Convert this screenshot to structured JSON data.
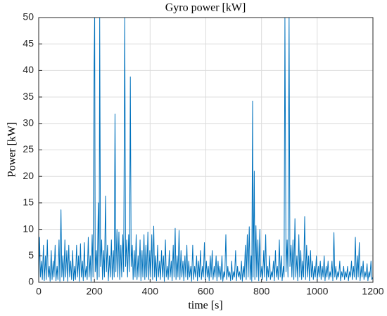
{
  "chart_data": {
    "type": "line",
    "title": "Gyro power [kW]",
    "xlabel": "time [s]",
    "ylabel": "Power [kW]",
    "xlim": [
      0,
      1200
    ],
    "ylim": [
      0,
      50
    ],
    "xticks": [
      0,
      200,
      400,
      600,
      800,
      1000,
      1200
    ],
    "yticks": [
      0,
      5,
      10,
      15,
      20,
      25,
      30,
      35,
      40,
      45,
      50
    ],
    "grid": true,
    "x": [
      0,
      3,
      6,
      10,
      13,
      17,
      20,
      24,
      27,
      31,
      34,
      38,
      41,
      45,
      48,
      52,
      55,
      59,
      62,
      66,
      69,
      73,
      76,
      80,
      83,
      87,
      90,
      94,
      97,
      101,
      104,
      108,
      111,
      115,
      118,
      122,
      125,
      129,
      132,
      136,
      139,
      143,
      146,
      150,
      153,
      157,
      160,
      164,
      167,
      171,
      174,
      178,
      181,
      185,
      188,
      192,
      195,
      199,
      201,
      203,
      207,
      210,
      214,
      217,
      219,
      222,
      226,
      229,
      233,
      236,
      240,
      243,
      247,
      250,
      254,
      257,
      261,
      264,
      268,
      271,
      274,
      277,
      281,
      284,
      288,
      291,
      295,
      298,
      302,
      305,
      309,
      312,
      316,
      319,
      323,
      326,
      329,
      332,
      336,
      339,
      343,
      346,
      350,
      353,
      357,
      360,
      364,
      367,
      371,
      374,
      378,
      381,
      385,
      388,
      392,
      395,
      399,
      402,
      406,
      409,
      413,
      416,
      420,
      423,
      427,
      430,
      434,
      437,
      441,
      444,
      448,
      451,
      455,
      458,
      462,
      465,
      469,
      472,
      476,
      479,
      483,
      486,
      490,
      493,
      497,
      500,
      504,
      507,
      511,
      514,
      518,
      521,
      525,
      528,
      532,
      535,
      539,
      542,
      546,
      549,
      553,
      556,
      560,
      563,
      567,
      570,
      574,
      577,
      581,
      584,
      588,
      591,
      595,
      598,
      602,
      605,
      609,
      612,
      616,
      619,
      623,
      626,
      630,
      633,
      637,
      640,
      644,
      647,
      651,
      654,
      658,
      661,
      665,
      668,
      672,
      675,
      679,
      682,
      686,
      689,
      693,
      696,
      700,
      703,
      707,
      710,
      714,
      717,
      721,
      724,
      728,
      731,
      735,
      738,
      742,
      745,
      749,
      752,
      756,
      759,
      763,
      765,
      768,
      770,
      774,
      776,
      780,
      783,
      787,
      790,
      794,
      797,
      801,
      804,
      808,
      811,
      815,
      818,
      822,
      825,
      829,
      832,
      836,
      839,
      843,
      846,
      850,
      853,
      857,
      860,
      864,
      867,
      871,
      874,
      878,
      881,
      884,
      888,
      892,
      895,
      899,
      902,
      906,
      909,
      913,
      916,
      920,
      923,
      927,
      930,
      934,
      937,
      941,
      944,
      948,
      951,
      955,
      958,
      962,
      965,
      969,
      972,
      976,
      979,
      983,
      986,
      990,
      993,
      997,
      1000,
      1004,
      1007,
      1011,
      1014,
      1018,
      1021,
      1025,
      1028,
      1032,
      1035,
      1039,
      1042,
      1046,
      1049,
      1053,
      1056,
      1060,
      1063,
      1067,
      1070,
      1074,
      1077,
      1081,
      1084,
      1088,
      1091,
      1095,
      1098,
      1102,
      1105,
      1109,
      1112,
      1116,
      1119,
      1123,
      1126,
      1130,
      1133,
      1137,
      1140,
      1144,
      1147,
      1151,
      1154,
      1158,
      1161,
      1165,
      1168,
      1172,
      1175,
      1179,
      1182,
      1186,
      1189,
      1193,
      1196,
      1200
    ],
    "series": [
      {
        "name": "Gyro power",
        "color": "#0072bd",
        "values": [
          0,
          8.5,
          1,
          4,
          0.5,
          7,
          0.3,
          5,
          0.5,
          8,
          1,
          3,
          0.2,
          6,
          0.5,
          4,
          1,
          7,
          0.3,
          3,
          0.5,
          8,
          0.2,
          13.7,
          1,
          5,
          0.3,
          8,
          1,
          6,
          0.2,
          7,
          1,
          4,
          0.5,
          6,
          0.3,
          3,
          0.5,
          7,
          1,
          5,
          0.2,
          7.3,
          1,
          4,
          0.3,
          7.5,
          1,
          3,
          0.5,
          8.5,
          1,
          5,
          0.2,
          9,
          1,
          41.5,
          50,
          2,
          6,
          0.5,
          15,
          1,
          50,
          3,
          8,
          0.5,
          6,
          1,
          16.3,
          2,
          7,
          0.3,
          5,
          1,
          8,
          0.5,
          6,
          1,
          31.8,
          2,
          10,
          1,
          9.5,
          0.5,
          7,
          1,
          9,
          2,
          50,
          3,
          8,
          1,
          9,
          2,
          38.8,
          3,
          7,
          0.5,
          6,
          1,
          9,
          0.5,
          5,
          1,
          8,
          0.3,
          6,
          1,
          9,
          0.5,
          7,
          1,
          9.5,
          0.5,
          6,
          1,
          9,
          0.5,
          10.6,
          1,
          5,
          0.3,
          7,
          1,
          4,
          0.5,
          6,
          1,
          5,
          0.2,
          8,
          1,
          3,
          0.5,
          6,
          1,
          4,
          0.3,
          7,
          1,
          10.2,
          0.5,
          5,
          1,
          9.8,
          0.5,
          6,
          1,
          4,
          0.3,
          5,
          1,
          7,
          0.5,
          4,
          1,
          3,
          0.2,
          7,
          0.5,
          3,
          1,
          5,
          0.3,
          4,
          1,
          6,
          0.5,
          3,
          1,
          7.5,
          0.5,
          4,
          1,
          3,
          0.3,
          5,
          1,
          6,
          0.5,
          3,
          1,
          5,
          0.3,
          4,
          1,
          3,
          0.5,
          5,
          0.2,
          2,
          1,
          9,
          0.5,
          3,
          1,
          2,
          0.3,
          4,
          0.5,
          2,
          1,
          6,
          0.3,
          3,
          1,
          2,
          0.5,
          4,
          0.2,
          3,
          1,
          7,
          0.5,
          9,
          1,
          10.5,
          0.5,
          5,
          0.2,
          34.2,
          1,
          21,
          0.5,
          10.7,
          1,
          8,
          0.3,
          10,
          1,
          3,
          0.5,
          6,
          1,
          9,
          0.3,
          3,
          1,
          5,
          0.5,
          2,
          1,
          4,
          0.3,
          6,
          1,
          3,
          0.5,
          8,
          1,
          5,
          0.3,
          3,
          1,
          50,
          2,
          8,
          1,
          50,
          3,
          7,
          1,
          8,
          0.5,
          12,
          1,
          5,
          0.3,
          9,
          1,
          6,
          0.5,
          4,
          1,
          12.4,
          0.5,
          7,
          1,
          5,
          0.3,
          6,
          1,
          4,
          0.5,
          3,
          1,
          5,
          0.3,
          3,
          1,
          4,
          0.5,
          3,
          1,
          5,
          0.3,
          3,
          1,
          4,
          0.5,
          2,
          1,
          4,
          0.3,
          9.4,
          1,
          3,
          0.5,
          2,
          1,
          4,
          0.3,
          2,
          1,
          3,
          0.5,
          2,
          1,
          3,
          0.3,
          2,
          1,
          4,
          0.5,
          3,
          1,
          8.5,
          0.5,
          5,
          1,
          7.5,
          0.3,
          3,
          1,
          4,
          0.5,
          2,
          1,
          3.5,
          0.3,
          2,
          1,
          4,
          0.5,
          1
        ]
      }
    ]
  }
}
